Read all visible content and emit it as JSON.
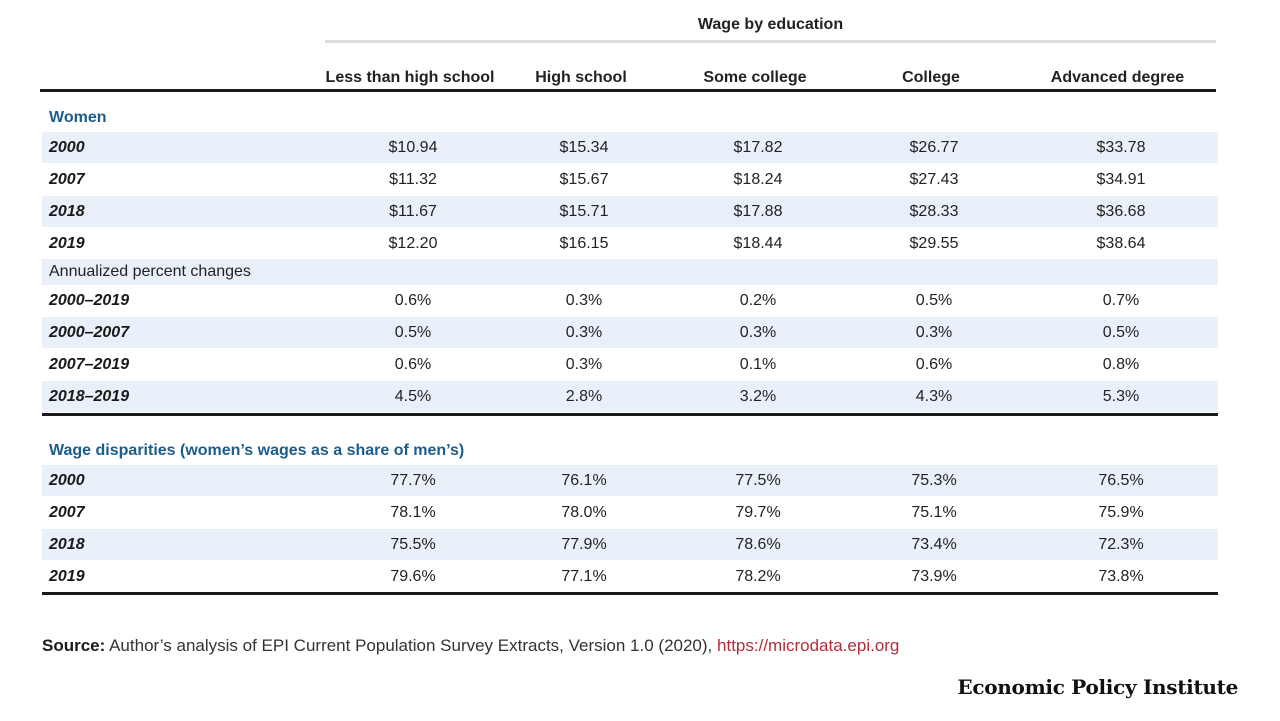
{
  "chart_data": {
    "type": "table",
    "group_header": "Wage by education",
    "columns": [
      "Less than high school",
      "High school",
      "Some college",
      "College",
      "Advanced degree"
    ],
    "sections": [
      {
        "label": "Women",
        "rows": [
          {
            "label": "2000",
            "values": [
              "$10.94",
              "$15.34",
              "$17.82",
              "$26.77",
              "$33.78"
            ]
          },
          {
            "label": "2007",
            "values": [
              "$11.32",
              "$15.67",
              "$18.24",
              "$27.43",
              "$34.91"
            ]
          },
          {
            "label": "2018",
            "values": [
              "$11.67",
              "$15.71",
              "$17.88",
              "$28.33",
              "$36.68"
            ]
          },
          {
            "label": "2019",
            "values": [
              "$12.20",
              "$16.15",
              "$18.44",
              "$29.55",
              "$38.64"
            ]
          }
        ],
        "subsection": {
          "label": "Annualized percent changes",
          "rows": [
            {
              "label": "2000–2019",
              "values": [
                "0.6%",
                "0.3%",
                "0.2%",
                "0.5%",
                "0.7%"
              ]
            },
            {
              "label": "2000–2007",
              "values": [
                "0.5%",
                "0.3%",
                "0.3%",
                "0.3%",
                "0.5%"
              ]
            },
            {
              "label": "2007–2019",
              "values": [
                "0.6%",
                "0.3%",
                "0.1%",
                "0.6%",
                "0.8%"
              ]
            },
            {
              "label": "2018–2019",
              "values": [
                "4.5%",
                "2.8%",
                "3.2%",
                "4.3%",
                "5.3%"
              ]
            }
          ]
        }
      },
      {
        "label": "Wage disparities (women’s wages as a share of men’s)",
        "rows": [
          {
            "label": "2000",
            "values": [
              "77.7%",
              "76.1%",
              "77.5%",
              "75.3%",
              "76.5%"
            ]
          },
          {
            "label": "2007",
            "values": [
              "78.1%",
              "78.0%",
              "79.7%",
              "75.1%",
              "75.9%"
            ]
          },
          {
            "label": "2018",
            "values": [
              "75.5%",
              "77.9%",
              "78.6%",
              "73.4%",
              "72.3%"
            ]
          },
          {
            "label": "2019",
            "values": [
              "79.6%",
              "77.1%",
              "78.2%",
              "73.9%",
              "73.8%"
            ]
          }
        ]
      }
    ]
  },
  "source": {
    "label": "Source:",
    "text": "Author’s analysis of EPI Current Population Survey Extracts, Version 1.0 (2020),",
    "link": "https://microdata.epi.org"
  },
  "logo_text": "Economic Policy Institute",
  "colors": {
    "section_label": "#1d5d8c",
    "row_shade": "#eaf0f9",
    "link": "#b32d3a"
  }
}
